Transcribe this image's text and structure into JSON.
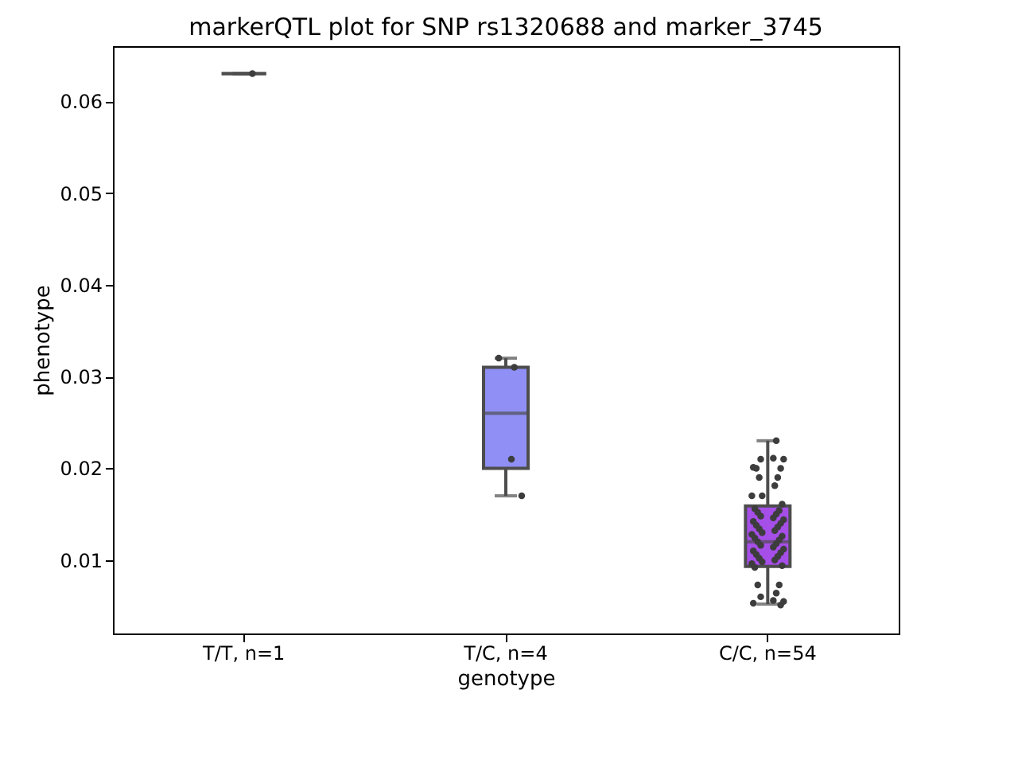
{
  "chart_data": {
    "type": "box",
    "title": "markerQTL plot for SNP rs1320688 and marker_3745",
    "xlabel": "genotype",
    "ylabel": "phenotype",
    "categories": [
      "T/T, n=1",
      "T/C, n=4",
      "C/C, n=54"
    ],
    "colors": [
      null,
      "#8f8ff5",
      "#a64ee8"
    ],
    "boxes": [
      {
        "low": 0.063,
        "q1": 0.063,
        "median": 0.063,
        "q3": 0.063,
        "high": 0.063
      },
      {
        "low": 0.017,
        "q1": 0.02,
        "median": 0.026,
        "q3": 0.031,
        "high": 0.032
      },
      {
        "low": 0.0052,
        "q1": 0.0093,
        "median": 0.012,
        "q3": 0.0159,
        "high": 0.023
      }
    ],
    "ylim": [
      0.002,
      0.066
    ],
    "yticks": [
      0.01,
      0.02,
      0.03,
      0.04,
      0.05,
      0.06
    ],
    "grid": false,
    "series": [
      {
        "type": "scatter",
        "color": "#3d3d3d",
        "x": [
          "T/T, n=1",
          "T/C, n=4",
          "T/C, n=4",
          "T/C, n=4",
          "T/C, n=4",
          "C/C, n=54",
          "C/C, n=54",
          "C/C, n=54",
          "C/C, n=54",
          "C/C, n=54",
          "C/C, n=54",
          "C/C, n=54",
          "C/C, n=54",
          "C/C, n=54",
          "C/C, n=54",
          "C/C, n=54",
          "C/C, n=54",
          "C/C, n=54",
          "C/C, n=54",
          "C/C, n=54",
          "C/C, n=54",
          "C/C, n=54",
          "C/C, n=54",
          "C/C, n=54",
          "C/C, n=54",
          "C/C, n=54",
          "C/C, n=54",
          "C/C, n=54",
          "C/C, n=54",
          "C/C, n=54",
          "C/C, n=54",
          "C/C, n=54",
          "C/C, n=54",
          "C/C, n=54",
          "C/C, n=54",
          "C/C, n=54",
          "C/C, n=54",
          "C/C, n=54",
          "C/C, n=54",
          "C/C, n=54",
          "C/C, n=54",
          "C/C, n=54",
          "C/C, n=54",
          "C/C, n=54",
          "C/C, n=54",
          "C/C, n=54",
          "C/C, n=54",
          "C/C, n=54",
          "C/C, n=54",
          "C/C, n=54",
          "C/C, n=54",
          "C/C, n=54",
          "C/C, n=54",
          "C/C, n=54",
          "C/C, n=54",
          "C/C, n=54",
          "C/C, n=54",
          "C/C, n=54",
          "C/C, n=54"
        ],
        "values": [
          0.063,
          0.031,
          0.032,
          0.021,
          0.017,
          0.023,
          0.021,
          0.0211,
          0.021,
          0.0201,
          0.02,
          0.02,
          0.019,
          0.019,
          0.0181,
          0.017,
          0.017,
          0.0161,
          0.0156,
          0.0154,
          0.0152,
          0.015,
          0.0148,
          0.0146,
          0.0144,
          0.0142,
          0.014,
          0.0138,
          0.0136,
          0.0134,
          0.0132,
          0.013,
          0.0128,
          0.0126,
          0.0124,
          0.0122,
          0.012,
          0.0118,
          0.0116,
          0.0114,
          0.0112,
          0.011,
          0.0108,
          0.0106,
          0.0104,
          0.0102,
          0.01,
          0.0098,
          0.0096,
          0.0094,
          0.0092,
          0.0073,
          0.0073,
          0.0064,
          0.006,
          0.0056,
          0.0055,
          0.0053,
          0.0051
        ],
        "marker": "circle"
      }
    ]
  }
}
